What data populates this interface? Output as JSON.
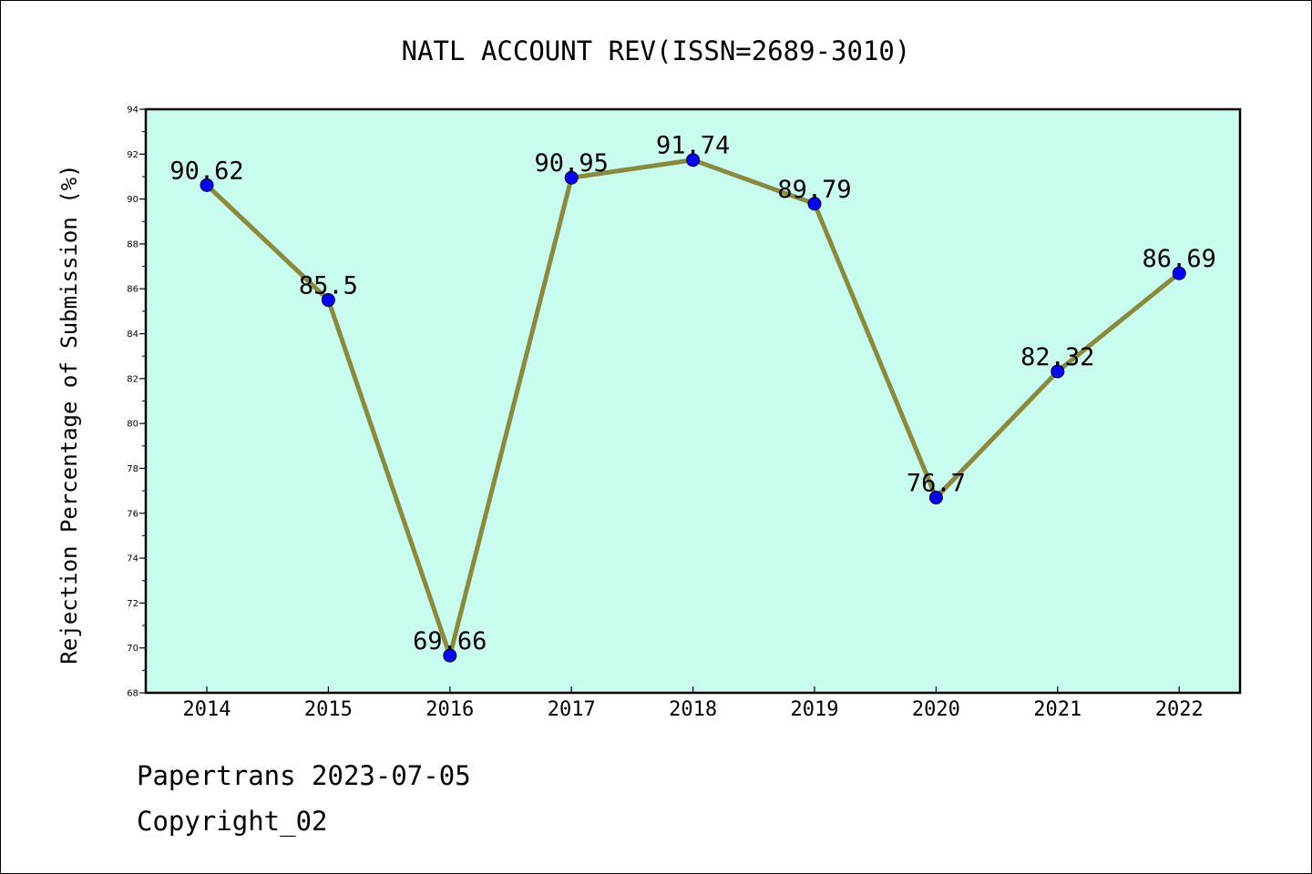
{
  "chart_data": {
    "type": "line",
    "title": "NATL ACCOUNT REV(ISSN=2689-3010)",
    "xlabel": "",
    "ylabel": "Rejection Percentage of Submission (%)",
    "categories": [
      "2014",
      "2015",
      "2016",
      "2017",
      "2018",
      "2019",
      "2020",
      "2021",
      "2022"
    ],
    "series": [
      {
        "values": [
          90.62,
          85.5,
          69.66,
          90.95,
          91.74,
          89.79,
          76.7,
          82.32,
          86.69
        ]
      }
    ],
    "data_labels": [
      "90.62",
      "85.5",
      "69.66",
      "90.95",
      "91.74",
      "89.79",
      "76.7",
      "82.32",
      "86.69"
    ],
    "ylim": [
      68,
      94
    ],
    "yticks": [
      "68",
      "70",
      "72",
      "74",
      "76",
      "78",
      "80",
      "82",
      "84",
      "86",
      "88",
      "90",
      "92",
      "94"
    ],
    "grid": false,
    "legend": "none",
    "colors": {
      "plot_bg": "#c8fcee",
      "line": "#8b8a3c",
      "marker": "#0000ff"
    }
  },
  "footer": {
    "source": "Papertrans 2023-07-05",
    "copyright": "Copyright_02"
  }
}
